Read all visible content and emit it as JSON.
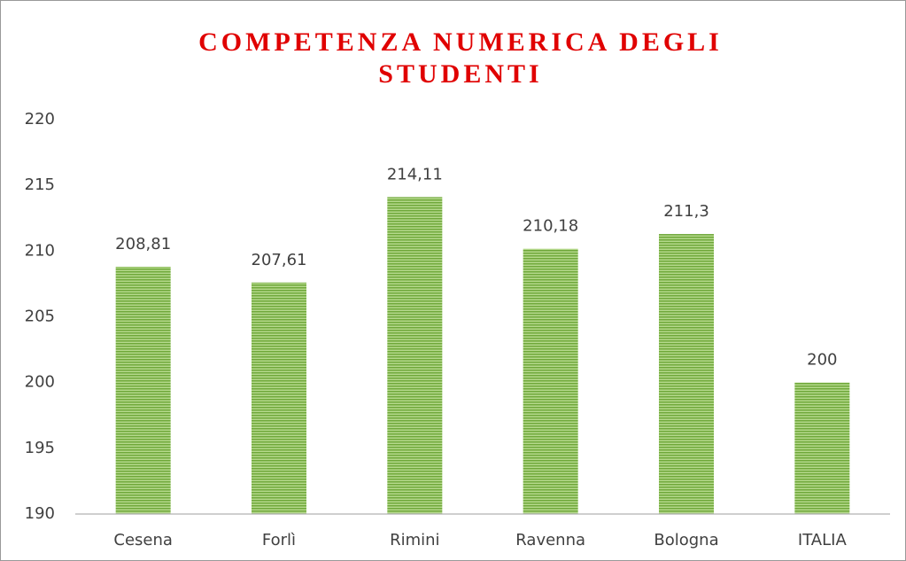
{
  "chart_data": {
    "type": "bar",
    "title": "COMPETENZA NUMERICA DEGLI STUDENTI",
    "categories": [
      "Cesena",
      "Forlì",
      "Rimini",
      "Ravenna",
      "Bologna",
      "ITALIA"
    ],
    "values": [
      208.81,
      207.61,
      214.11,
      210.18,
      211.3,
      200
    ],
    "value_labels": [
      "208,81",
      "207,61",
      "214,11",
      "210,18",
      "211,3",
      "200"
    ],
    "color": "#8cc152",
    "ylim": [
      190,
      220
    ],
    "yticks": [
      190,
      195,
      200,
      205,
      210,
      215,
      220
    ],
    "grid": false
  }
}
